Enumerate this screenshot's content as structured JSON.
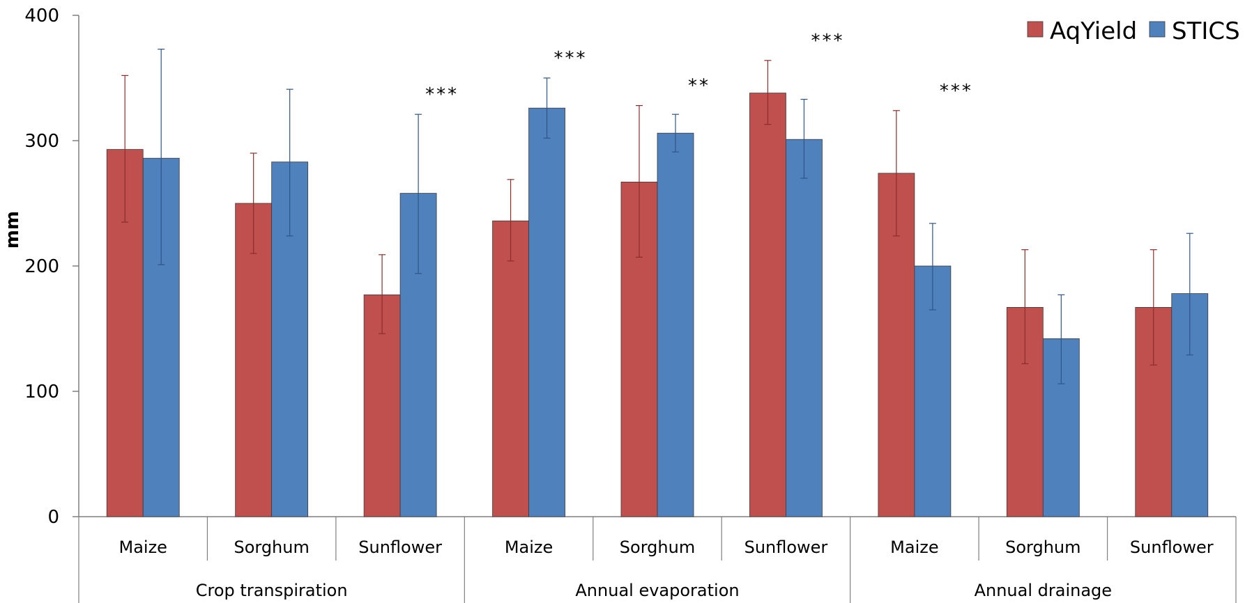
{
  "chart_data": {
    "type": "bar",
    "title": "",
    "xlabel": "",
    "ylabel": "mm",
    "ylim": [
      0,
      400
    ],
    "yticks": [
      "0",
      "100",
      "200",
      "300",
      "400"
    ],
    "grid": false,
    "legend_position": "top-right",
    "groups": [
      {
        "label": "Crop transpiration",
        "categories": [
          "Maize",
          "Sorghum",
          "Sunflower"
        ]
      },
      {
        "label": "Annual evaporation",
        "categories": [
          "Maize",
          "Sorghum",
          "Sunflower"
        ]
      },
      {
        "label": "Annual drainage",
        "categories": [
          "Maize",
          "Sorghum",
          "Sunflower"
        ]
      }
    ],
    "series": [
      {
        "name": "AqYield",
        "color": "#c0504d",
        "values": [
          293,
          250,
          177,
          236,
          267,
          338,
          274,
          167,
          167
        ],
        "error_low": [
          235,
          210,
          146,
          204,
          207,
          313,
          224,
          122,
          121
        ],
        "error_high": [
          352,
          290,
          209,
          269,
          328,
          364,
          324,
          213,
          213
        ]
      },
      {
        "name": "STICS",
        "color": "#4f81bd",
        "values": [
          286,
          283,
          258,
          326,
          306,
          301,
          200,
          142,
          178
        ],
        "error_low": [
          201,
          224,
          194,
          302,
          291,
          270,
          165,
          106,
          129
        ],
        "error_high": [
          373,
          341,
          321,
          350,
          321,
          333,
          234,
          177,
          226
        ]
      }
    ],
    "significance": [
      "",
      "",
      "***",
      "***",
      "**",
      "***",
      "***",
      "",
      ""
    ]
  }
}
